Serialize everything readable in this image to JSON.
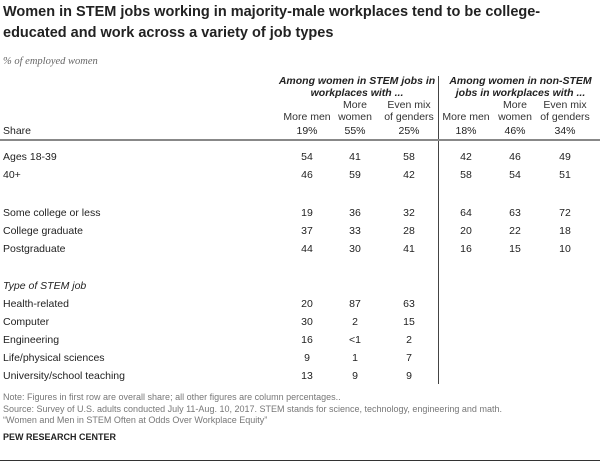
{
  "chart_data": {
    "type": "table",
    "title": "Women in STEM jobs working in majority-male workplaces tend to be college-educated and work across a variety of job types",
    "subtitle": "% of employed women",
    "groups": [
      "Among women in STEM jobs in workplaces with ...",
      "Among women in non-STEM jobs in workplaces with ..."
    ],
    "columns": [
      [
        "More men"
      ],
      [
        "More",
        "women"
      ],
      [
        "Even mix",
        "of genders"
      ],
      [
        "More men"
      ],
      [
        "More",
        "women"
      ],
      [
        "Even mix",
        "of genders"
      ]
    ],
    "share": {
      "label": "Share",
      "values": [
        "19%",
        "55%",
        "25%",
        "18%",
        "46%",
        "34%"
      ]
    },
    "rows": [
      {
        "label": "Ages 18-39",
        "values": [
          "54",
          "41",
          "58",
          "42",
          "46",
          "49"
        ]
      },
      {
        "label": "40+",
        "values": [
          "46",
          "59",
          "42",
          "58",
          "54",
          "51"
        ]
      },
      {
        "label": "Some college or less",
        "values": [
          "19",
          "36",
          "32",
          "64",
          "63",
          "72"
        ]
      },
      {
        "label": "College graduate",
        "values": [
          "37",
          "33",
          "28",
          "20",
          "22",
          "18"
        ]
      },
      {
        "label": "Postgraduate",
        "values": [
          "44",
          "30",
          "41",
          "16",
          "15",
          "10"
        ]
      },
      {
        "label": "Health-related",
        "values": [
          "20",
          "87",
          "63"
        ]
      },
      {
        "label": "Computer",
        "values": [
          "30",
          "2",
          "15"
        ]
      },
      {
        "label": "Engineering",
        "values": [
          "16",
          "<1",
          "2"
        ]
      },
      {
        "label": "Life/physical sciences",
        "values": [
          "9",
          "1",
          "7"
        ]
      },
      {
        "label": "University/school teaching",
        "values": [
          "13",
          "9",
          "9"
        ]
      }
    ],
    "section_label": "Type of STEM job",
    "note": "Note: Figures in first row are overall share; all other figures are column percentages..",
    "source": "Source: Survey of U.S. adults conducted July 11-Aug. 10, 2017. STEM stands for science, technology, engineering and math.",
    "report": "“Women and Men in STEM Often at Odds Over Workplace Equity”",
    "credit": "PEW RESEARCH CENTER"
  }
}
